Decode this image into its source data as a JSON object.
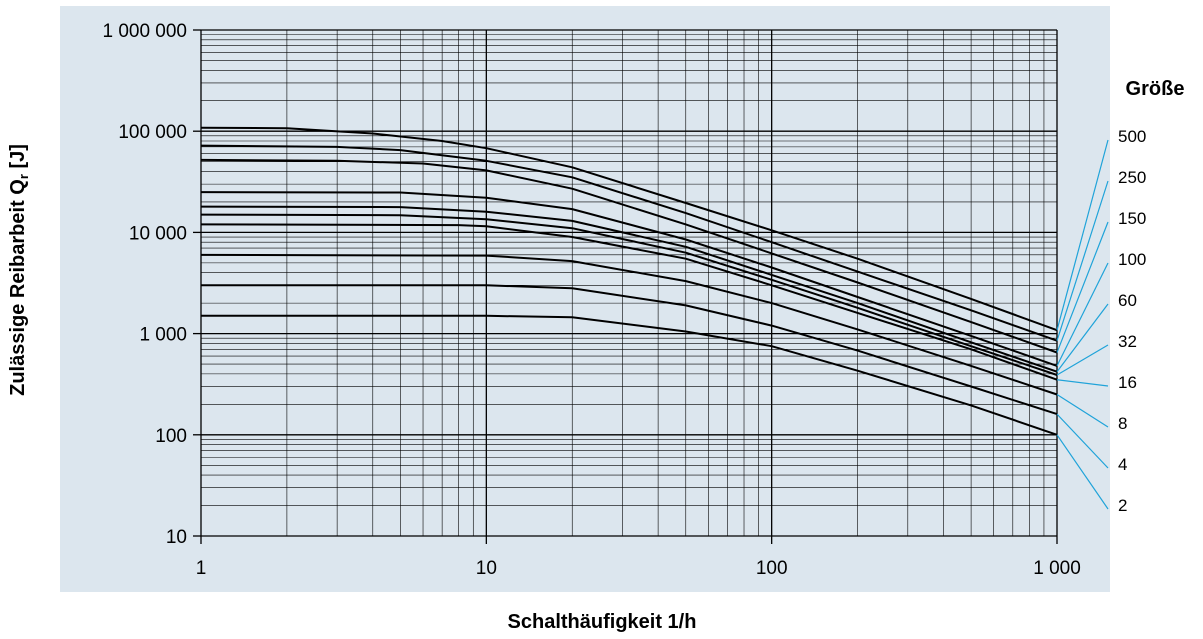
{
  "chart_data": {
    "type": "line",
    "xlabel": "Schalthäufigkeit 1/h",
    "ylabel_main": "Zulässige Reibarbeit Q",
    "ylabel_sub": "r",
    "ylabel_unit": " [J]",
    "xscale": "log",
    "yscale": "log",
    "xlim": [
      1,
      1000
    ],
    "ylim": [
      10,
      1000000
    ],
    "grid": true,
    "x_ticks": [
      {
        "value": 1,
        "label": "1"
      },
      {
        "value": 10,
        "label": "10"
      },
      {
        "value": 100,
        "label": "100"
      },
      {
        "value": 1000,
        "label": "1 000"
      }
    ],
    "y_ticks": [
      {
        "value": 10,
        "label": "10"
      },
      {
        "value": 100,
        "label": "100"
      },
      {
        "value": 1000,
        "label": "1 000"
      },
      {
        "value": 10000,
        "label": "10 000"
      },
      {
        "value": 100000,
        "label": "100 000"
      },
      {
        "value": 1000000,
        "label": "1 000 000"
      }
    ],
    "legend_title": "Größe",
    "legend_position": "right",
    "colors": {
      "background": "#dce6ee",
      "curve": "#000000",
      "leader": "#1fa3d9"
    },
    "series": [
      {
        "name": "500",
        "points": [
          [
            1,
            108000
          ],
          [
            2,
            107000
          ],
          [
            4,
            95000
          ],
          [
            7,
            80000
          ],
          [
            10,
            68000
          ],
          [
            20,
            44000
          ],
          [
            50,
            19500
          ],
          [
            100,
            10500
          ],
          [
            200,
            5500
          ],
          [
            500,
            2200
          ],
          [
            1000,
            1080
          ]
        ]
      },
      {
        "name": "250",
        "points": [
          [
            1,
            72000
          ],
          [
            3,
            70000
          ],
          [
            5,
            65000
          ],
          [
            10,
            51000
          ],
          [
            20,
            35000
          ],
          [
            50,
            15500
          ],
          [
            100,
            8000
          ],
          [
            200,
            4100
          ],
          [
            500,
            1700
          ],
          [
            1000,
            850
          ]
        ]
      },
      {
        "name": "150",
        "points": [
          [
            1,
            52000
          ],
          [
            3,
            51000
          ],
          [
            6,
            48000
          ],
          [
            10,
            41000
          ],
          [
            20,
            27000
          ],
          [
            50,
            12000
          ],
          [
            100,
            6200
          ],
          [
            200,
            3200
          ],
          [
            500,
            1300
          ],
          [
            1000,
            650
          ]
        ]
      },
      {
        "name": "100",
        "points": [
          [
            1,
            25000
          ],
          [
            5,
            24800
          ],
          [
            10,
            22000
          ],
          [
            20,
            17000
          ],
          [
            50,
            8500
          ],
          [
            100,
            4500
          ],
          [
            200,
            2300
          ],
          [
            500,
            950
          ],
          [
            1000,
            480
          ]
        ]
      },
      {
        "name": "60",
        "points": [
          [
            1,
            18000
          ],
          [
            5,
            17800
          ],
          [
            10,
            16000
          ],
          [
            20,
            13000
          ],
          [
            50,
            7200
          ],
          [
            100,
            3800
          ],
          [
            200,
            2000
          ],
          [
            500,
            820
          ],
          [
            1000,
            420
          ]
        ]
      },
      {
        "name": "32",
        "points": [
          [
            1,
            15000
          ],
          [
            5,
            14800
          ],
          [
            10,
            13500
          ],
          [
            20,
            11000
          ],
          [
            50,
            6300
          ],
          [
            100,
            3400
          ],
          [
            200,
            1800
          ],
          [
            500,
            750
          ],
          [
            1000,
            390
          ]
        ]
      },
      {
        "name": "16",
        "points": [
          [
            1,
            12000
          ],
          [
            8,
            11800
          ],
          [
            10,
            11500
          ],
          [
            20,
            9000
          ],
          [
            50,
            5500
          ],
          [
            100,
            3000
          ],
          [
            200,
            1600
          ],
          [
            500,
            700
          ],
          [
            1000,
            350
          ]
        ]
      },
      {
        "name": "8",
        "points": [
          [
            1,
            6000
          ],
          [
            10,
            5900
          ],
          [
            20,
            5200
          ],
          [
            50,
            3300
          ],
          [
            100,
            2000
          ],
          [
            200,
            1100
          ],
          [
            500,
            480
          ],
          [
            1000,
            250
          ]
        ]
      },
      {
        "name": "4",
        "points": [
          [
            1,
            3000
          ],
          [
            10,
            3000
          ],
          [
            20,
            2800
          ],
          [
            50,
            1900
          ],
          [
            100,
            1200
          ],
          [
            200,
            680
          ],
          [
            500,
            300
          ],
          [
            1000,
            160
          ]
        ]
      },
      {
        "name": "2",
        "points": [
          [
            1,
            1500
          ],
          [
            10,
            1500
          ],
          [
            20,
            1450
          ],
          [
            50,
            1050
          ],
          [
            100,
            750
          ],
          [
            200,
            430
          ],
          [
            500,
            195
          ],
          [
            1000,
            100
          ]
        ]
      }
    ]
  }
}
